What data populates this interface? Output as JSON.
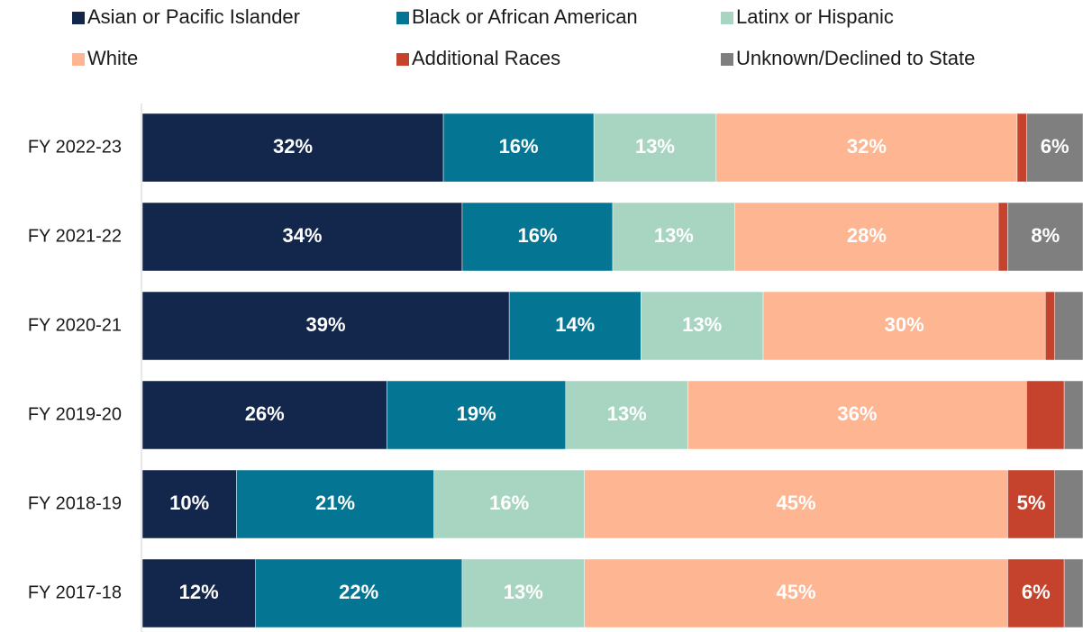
{
  "chart_data": {
    "type": "stacked-bar-horizontal",
    "categories": [
      "FY 2022-23",
      "FY 2021-22",
      "FY 2020-21",
      "FY 2019-20",
      "FY 2018-19",
      "FY 2017-18"
    ],
    "xlim": [
      0,
      100
    ],
    "legend": "top",
    "series": [
      {
        "name": "Asian or Pacific Islander",
        "color": "#13264b",
        "values": [
          32,
          34,
          39,
          26,
          10,
          12
        ],
        "value_labels": [
          "32%",
          "34%",
          "39%",
          "26%",
          "10%",
          "12%"
        ]
      },
      {
        "name": "Black or African American",
        "color": "#047592",
        "values": [
          16,
          16,
          14,
          19,
          21,
          22
        ],
        "value_labels": [
          "16%",
          "16%",
          "14%",
          "19%",
          "21%",
          "22%"
        ]
      },
      {
        "name": "Latinx or Hispanic",
        "color": "#a8d5c2",
        "values": [
          13,
          13,
          13,
          13,
          16,
          13
        ],
        "value_labels": [
          "13%",
          "13%",
          "13%",
          "13%",
          "16%",
          "13%"
        ]
      },
      {
        "name": "White",
        "color": "#fdb592",
        "values": [
          32,
          28,
          30,
          36,
          45,
          45
        ],
        "value_labels": [
          "32%",
          "28%",
          "30%",
          "36%",
          "45%",
          "45%"
        ]
      },
      {
        "name": "Additional Races",
        "color": "#c5422c",
        "values": [
          1,
          1,
          1,
          4,
          5,
          6
        ],
        "value_labels": [
          null,
          null,
          null,
          null,
          "5%",
          "6%"
        ]
      },
      {
        "name": "Unknown/Declined to State",
        "color": "#7f7f7f",
        "values": [
          6,
          8,
          3,
          2,
          3,
          2
        ],
        "value_labels": [
          "6%",
          "8%",
          null,
          null,
          null,
          null
        ]
      }
    ]
  }
}
